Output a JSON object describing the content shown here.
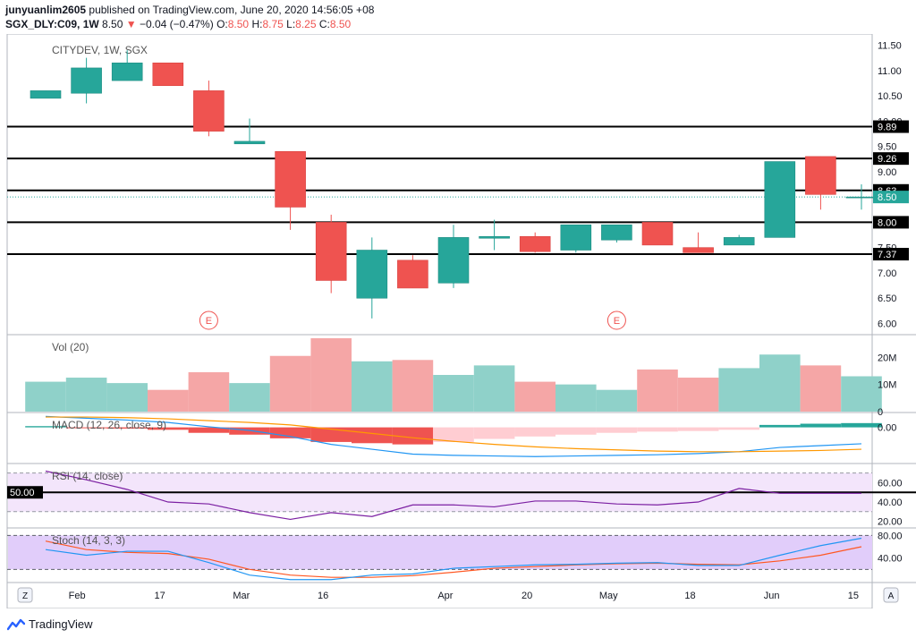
{
  "header": {
    "publisher": "junyuanlim2605",
    "published_text": "published on TradingView.com, June 20, 2020 14:56:05 +08",
    "symbol": "SGX_DLY:C09, 1W",
    "last": "8.50",
    "change_arrow": "▼",
    "change": "−0.04 (−0.47%)",
    "o_label": "O:",
    "o_val": "8.50",
    "h_label": "H:",
    "h_val": "8.75",
    "l_label": "L:",
    "l_val": "8.25",
    "c_label": "C:",
    "c_val": "8.50"
  },
  "footer": {
    "brand": "TradingView"
  },
  "chart_data": {
    "type": "candlestick",
    "title": "CITYDEV, 1W, SGX",
    "colors": {
      "up": "#26a69a",
      "down": "#ef5350",
      "up_vol": "#8fd1c9",
      "down_vol": "#f5a6a6"
    },
    "price_ylim": [
      5.85,
      11.65
    ],
    "price_ticks": [
      "6.00",
      "6.50",
      "7.00",
      "7.50",
      "8.00",
      "8.50",
      "9.00",
      "9.50",
      "10.00",
      "10.50",
      "11.00",
      "11.50"
    ],
    "candles": [
      {
        "o": 10.45,
        "h": 10.6,
        "l": 10.45,
        "c": 10.6
      },
      {
        "o": 10.55,
        "h": 11.25,
        "l": 10.35,
        "c": 11.05
      },
      {
        "o": 10.8,
        "h": 11.4,
        "l": 10.8,
        "c": 11.15
      },
      {
        "o": 11.15,
        "h": 11.15,
        "l": 10.7,
        "c": 10.7
      },
      {
        "o": 10.6,
        "h": 10.8,
        "l": 9.7,
        "c": 9.8
      },
      {
        "o": 9.55,
        "h": 10.05,
        "l": 9.55,
        "c": 9.6
      },
      {
        "o": 9.4,
        "h": 9.4,
        "l": 7.85,
        "c": 8.3
      },
      {
        "o": 8.0,
        "h": 8.15,
        "l": 6.6,
        "c": 6.85
      },
      {
        "o": 6.5,
        "h": 7.7,
        "l": 6.1,
        "c": 7.45
      },
      {
        "o": 7.25,
        "h": 7.35,
        "l": 6.7,
        "c": 6.7
      },
      {
        "o": 6.8,
        "h": 7.95,
        "l": 6.7,
        "c": 7.7
      },
      {
        "o": 7.7,
        "h": 8.05,
        "l": 7.45,
        "c": 7.72
      },
      {
        "o": 7.72,
        "h": 7.8,
        "l": 7.4,
        "c": 7.42
      },
      {
        "o": 7.45,
        "h": 7.95,
        "l": 7.4,
        "c": 7.95
      },
      {
        "o": 7.65,
        "h": 7.95,
        "l": 7.6,
        "c": 7.95
      },
      {
        "o": 8.0,
        "h": 8.0,
        "l": 7.55,
        "c": 7.55
      },
      {
        "o": 7.5,
        "h": 7.8,
        "l": 7.4,
        "c": 7.4
      },
      {
        "o": 7.55,
        "h": 7.75,
        "l": 7.55,
        "c": 7.7
      },
      {
        "o": 7.7,
        "h": 9.2,
        "l": 7.7,
        "c": 9.2
      },
      {
        "o": 9.3,
        "h": 9.3,
        "l": 8.25,
        "c": 8.55
      },
      {
        "o": 8.5,
        "h": 8.75,
        "l": 8.25,
        "c": 8.5
      }
    ],
    "hlines": [
      {
        "value": 9.89,
        "label": "9.89"
      },
      {
        "value": 9.26,
        "label": "9.26"
      },
      {
        "value": 8.63,
        "label": "8.63"
      },
      {
        "value": 8.0,
        "label": "8.00"
      },
      {
        "value": 7.37,
        "label": "7.37"
      }
    ],
    "last_price": {
      "value": 8.5,
      "label": "8.50"
    },
    "earnings": [
      {
        "index": 4,
        "label": "E"
      },
      {
        "index": 14,
        "label": "E"
      }
    ],
    "volume": {
      "label": "Vol (20)",
      "ylim": [
        0,
        27
      ],
      "ticks": [
        {
          "v": 0,
          "label": "0"
        },
        {
          "v": 10,
          "label": "10M"
        },
        {
          "v": 20,
          "label": "20M"
        }
      ],
      "values": [
        11,
        12.5,
        10.5,
        8,
        14.5,
        10.5,
        20.5,
        27,
        18.5,
        19,
        13.5,
        17,
        11,
        10,
        8,
        15.5,
        12.5,
        16,
        21,
        17,
        13
      ]
    },
    "macd": {
      "label": "MACD (12, 26, close, 9)",
      "ylim": [
        -0.55,
        0.2
      ],
      "tick": {
        "v": 0,
        "label": "0.00"
      },
      "hist": [
        0.02,
        -0.01,
        -0.02,
        -0.04,
        -0.09,
        -0.12,
        -0.18,
        -0.24,
        -0.26,
        -0.28,
        -0.24,
        -0.19,
        -0.15,
        -0.12,
        -0.09,
        -0.07,
        -0.06,
        -0.04,
        0.04,
        0.06,
        0.07
      ],
      "macd_line": [
        0.18,
        0.15,
        0.12,
        0.08,
        0.01,
        -0.05,
        -0.15,
        -0.28,
        -0.36,
        -0.44,
        -0.46,
        -0.47,
        -0.48,
        -0.47,
        -0.46,
        -0.45,
        -0.43,
        -0.4,
        -0.33,
        -0.3,
        -0.27
      ],
      "signal_line": [
        0.17,
        0.17,
        0.16,
        0.14,
        0.11,
        0.08,
        0.04,
        -0.03,
        -0.1,
        -0.17,
        -0.23,
        -0.28,
        -0.32,
        -0.35,
        -0.37,
        -0.39,
        -0.4,
        -0.4,
        -0.39,
        -0.38,
        -0.36
      ]
    },
    "rsi": {
      "label": "RSI (14, close)",
      "ylim": [
        15,
        78
      ],
      "ticks": [
        {
          "v": 20,
          "label": "20.00"
        },
        {
          "v": 40,
          "label": "40.00"
        },
        {
          "v": 60,
          "label": "60.00"
        }
      ],
      "midline": {
        "v": 50,
        "label": "50.00"
      },
      "band": [
        30,
        70
      ],
      "values": [
        72,
        63,
        53,
        40,
        38,
        29,
        22,
        29,
        25,
        37,
        37,
        35,
        41,
        41,
        38,
        37,
        40,
        54,
        49,
        49,
        49
      ]
    },
    "stoch": {
      "label": "Stoch (14, 3, 3)",
      "ylim": [
        0,
        90
      ],
      "ticks": [
        {
          "v": 40,
          "label": "40.00"
        },
        {
          "v": 80,
          "label": "80.00"
        }
      ],
      "band": [
        20,
        80
      ],
      "k": [
        55,
        45,
        52,
        52,
        32,
        10,
        2,
        2,
        10,
        12,
        22,
        25,
        28,
        29,
        31,
        32,
        27,
        27,
        45,
        62,
        75
      ],
      "d": [
        70,
        55,
        50,
        48,
        38,
        20,
        10,
        6,
        6,
        9,
        15,
        22,
        25,
        28,
        30,
        31,
        29,
        28,
        35,
        45,
        60
      ]
    },
    "x_ticks": [
      {
        "pos": 0.77,
        "label": "Feb"
      },
      {
        "pos": 2.8,
        "label": "17"
      },
      {
        "pos": 4.8,
        "label": "Mar"
      },
      {
        "pos": 6.8,
        "label": "16"
      },
      {
        "pos": 9.8,
        "label": "Apr"
      },
      {
        "pos": 11.8,
        "label": "20"
      },
      {
        "pos": 13.8,
        "label": "May"
      },
      {
        "pos": 15.8,
        "label": "18"
      },
      {
        "pos": 17.8,
        "label": "Jun"
      },
      {
        "pos": 19.8,
        "label": "15"
      }
    ],
    "corner_buttons": {
      "left": "Z",
      "right": "A"
    }
  }
}
